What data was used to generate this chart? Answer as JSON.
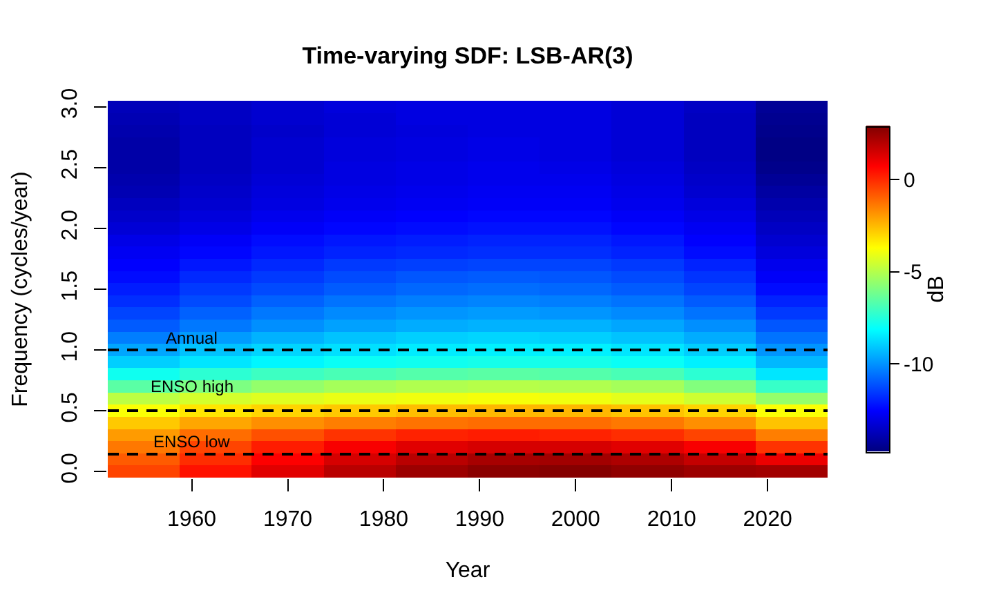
{
  "chart_data": {
    "type": "heatmap",
    "title": "Time-varying SDF: LSB-AR(3)",
    "xlabel": "Year",
    "ylabel": "Frequency (cycles/year)",
    "clabel": "dB",
    "x": [
      1955,
      1962.5,
      1970,
      1977.5,
      1985,
      1992.5,
      2000,
      2007.5,
      2015,
      2022.5
    ],
    "y_categories": [
      "3.0",
      null,
      null,
      null,
      null,
      "2.5",
      null,
      null,
      null,
      null,
      "2.0",
      null,
      null,
      null,
      null,
      "1.5",
      null,
      null,
      null,
      null,
      "1.0",
      null,
      null,
      null,
      null,
      "0.5",
      null,
      null,
      null,
      null,
      "0.0"
    ],
    "cells": [
      [
        -13.8,
        -13.6,
        -13.4,
        -13.2,
        -13.1,
        -13.1,
        -13.1,
        -13.3,
        -13.6,
        -14.4
      ],
      [
        -13.9,
        -13.6,
        -13.4,
        -13.3,
        -13.1,
        -13.1,
        -13.1,
        -13.3,
        -13.7,
        -14.5
      ],
      [
        -14.0,
        -13.7,
        -13.5,
        -13.3,
        -13.2,
        -13.1,
        -13.1,
        -13.3,
        -13.7,
        -14.6
      ],
      [
        -14.1,
        -13.7,
        -13.4,
        -13.2,
        -13.1,
        -13.0,
        -13.1,
        -13.3,
        -13.7,
        -14.7
      ],
      [
        -14.1,
        -13.7,
        -13.4,
        -13.2,
        -13.1,
        -13.0,
        -13.1,
        -13.3,
        -13.7,
        -14.7
      ],
      [
        -14.1,
        -13.7,
        -13.4,
        -13.1,
        -13.0,
        -12.9,
        -13.0,
        -13.2,
        -13.6,
        -14.6
      ],
      [
        -14.0,
        -13.6,
        -13.3,
        -13.1,
        -13.0,
        -12.9,
        -12.9,
        -13.1,
        -13.5,
        -14.4
      ],
      [
        -13.9,
        -13.5,
        -13.2,
        -13.0,
        -12.9,
        -12.8,
        -12.8,
        -13.0,
        -13.4,
        -14.2
      ],
      [
        -13.7,
        -13.4,
        -13.1,
        -12.9,
        -12.8,
        -12.7,
        -12.7,
        -12.9,
        -13.2,
        -14.0
      ],
      [
        -13.5,
        -13.2,
        -12.9,
        -12.7,
        -12.6,
        -12.5,
        -12.5,
        -12.7,
        -13.0,
        -13.8
      ],
      [
        -13.3,
        -13.0,
        -12.7,
        -12.5,
        -12.4,
        -12.3,
        -12.3,
        -12.5,
        -12.8,
        -13.6
      ],
      [
        -13.0,
        -12.7,
        -12.4,
        -12.2,
        -12.1,
        -12.0,
        -12.0,
        -12.2,
        -12.6,
        -13.4
      ],
      [
        -12.8,
        -12.5,
        -12.2,
        -12.0,
        -11.9,
        -11.8,
        -11.8,
        -12.0,
        -12.4,
        -13.2
      ],
      [
        -12.6,
        -12.2,
        -11.9,
        -11.6,
        -11.5,
        -11.4,
        -11.4,
        -11.6,
        -12.0,
        -12.9
      ],
      [
        -12.4,
        -11.9,
        -11.6,
        -11.3,
        -11.1,
        -11.0,
        -11.1,
        -11.3,
        -11.7,
        -12.7
      ],
      [
        -12.1,
        -11.6,
        -11.3,
        -11.0,
        -10.8,
        -10.7,
        -10.8,
        -11.0,
        -11.4,
        -12.4
      ],
      [
        -11.8,
        -11.3,
        -10.9,
        -10.6,
        -10.4,
        -10.3,
        -10.4,
        -10.6,
        -11.0,
        -12.0
      ],
      [
        -11.4,
        -10.9,
        -10.5,
        -10.2,
        -10.0,
        -9.9,
        -10.0,
        -10.2,
        -10.6,
        -11.6
      ],
      [
        -11.0,
        -10.5,
        -10.1,
        -9.8,
        -9.6,
        -9.5,
        -9.5,
        -9.7,
        -10.1,
        -11.1
      ],
      [
        -10.4,
        -9.9,
        -9.5,
        -9.2,
        -9.0,
        -8.9,
        -9.0,
        -9.2,
        -9.6,
        -10.6
      ],
      [
        -9.7,
        -9.2,
        -8.9,
        -8.7,
        -8.5,
        -8.4,
        -8.4,
        -8.6,
        -9.0,
        -10.0
      ],
      [
        -9.0,
        -8.6,
        -8.3,
        -8.0,
        -7.9,
        -7.8,
        -7.8,
        -8.0,
        -8.4,
        -9.4
      ],
      [
        -7.9,
        -7.4,
        -7.1,
        -6.9,
        -6.7,
        -6.6,
        -6.7,
        -6.9,
        -7.4,
        -8.6
      ],
      [
        -6.6,
        -6.0,
        -5.6,
        -5.3,
        -5.1,
        -5.0,
        -5.1,
        -5.3,
        -5.9,
        -7.2
      ],
      [
        -4.9,
        -4.5,
        -4.3,
        -4.1,
        -4.0,
        -3.9,
        -4.0,
        -4.2,
        -4.6,
        -5.6
      ],
      [
        -3.8,
        -3.3,
        -3.0,
        -2.8,
        -2.6,
        -2.5,
        -2.5,
        -2.7,
        -3.0,
        -3.8
      ],
      [
        -2.8,
        -2.2,
        -1.8,
        -1.5,
        -1.3,
        -1.2,
        -1.2,
        -1.4,
        -1.8,
        -2.7
      ],
      [
        -2.0,
        -1.2,
        -0.7,
        -0.2,
        0.1,
        0.2,
        0.1,
        -0.1,
        -0.5,
        -1.5
      ],
      [
        -1.4,
        -0.5,
        0.2,
        0.8,
        1.2,
        1.4,
        1.4,
        1.2,
        0.8,
        -0.2
      ],
      [
        -0.9,
        -0.1,
        0.7,
        1.4,
        1.9,
        2.2,
        2.3,
        2.1,
        1.7,
        1.0
      ],
      [
        -0.5,
        0.4,
        1.2,
        1.9,
        2.4,
        2.7,
        2.8,
        2.6,
        2.4,
        2.3
      ]
    ],
    "xlim": [
      1951.25,
      2026.25
    ],
    "xticks": [
      1960,
      1970,
      1980,
      1990,
      2000,
      2010,
      2020
    ],
    "clim": [
      -14.8,
      2.9
    ],
    "cticks": [
      -10,
      -5,
      0
    ],
    "ref_lines": [
      {
        "axis": "y",
        "value": "1.0",
        "color": "#000000",
        "line_style": "dashed"
      },
      {
        "axis": "y",
        "value": "0.5",
        "color": "#000000",
        "line_style": "dashed"
      }
    ],
    "annotations": [
      "Annual",
      "ENSO high",
      "ENSO low"
    ]
  }
}
